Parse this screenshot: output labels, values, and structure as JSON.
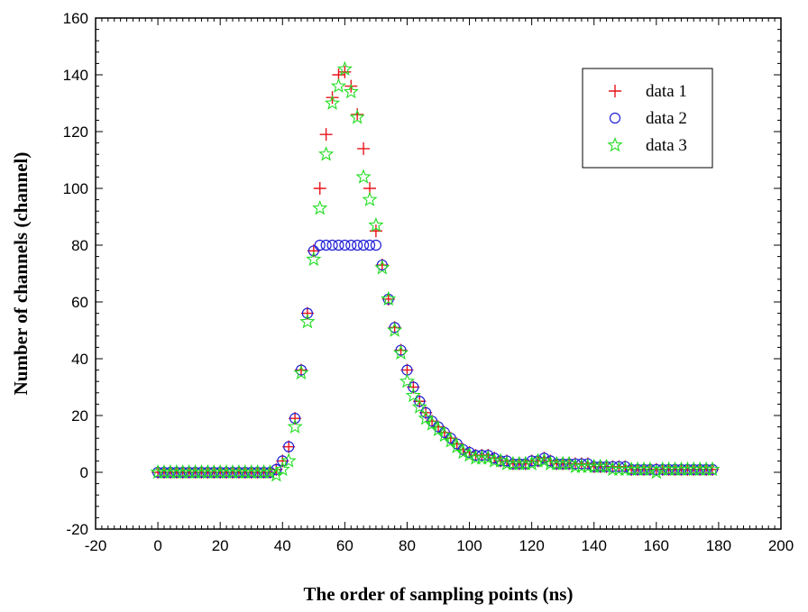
{
  "chart_data": {
    "type": "scatter",
    "title": "",
    "xlabel": "The order of sampling points (ns)",
    "ylabel": "Number of channels (channel)",
    "xlim": [
      -20,
      200
    ],
    "ylim": [
      -20,
      160
    ],
    "x_ticks": [
      -20,
      0,
      20,
      40,
      60,
      80,
      100,
      120,
      140,
      160,
      180,
      200
    ],
    "y_ticks": [
      -20,
      0,
      20,
      40,
      60,
      80,
      100,
      120,
      140,
      160
    ],
    "x_minor_step": 2,
    "y_minor_step": 4,
    "grid": false,
    "legend_position": "top-right",
    "x": [
      0,
      2,
      4,
      6,
      8,
      10,
      12,
      14,
      16,
      18,
      20,
      22,
      24,
      26,
      28,
      30,
      32,
      34,
      36,
      38,
      40,
      42,
      44,
      46,
      48,
      50,
      52,
      54,
      56,
      58,
      60,
      62,
      64,
      66,
      68,
      70,
      72,
      74,
      76,
      78,
      80,
      82,
      84,
      86,
      88,
      90,
      92,
      94,
      96,
      98,
      100,
      102,
      104,
      106,
      108,
      110,
      112,
      114,
      116,
      118,
      120,
      122,
      124,
      126,
      128,
      130,
      132,
      134,
      136,
      138,
      140,
      142,
      144,
      146,
      148,
      150,
      152,
      154,
      156,
      158,
      160,
      162,
      164,
      166,
      168,
      170,
      172,
      174,
      176,
      178
    ],
    "series": [
      {
        "name": "data 1",
        "marker": "plus",
        "color": "#e8131b",
        "values": [
          0,
          0,
          0,
          0,
          0,
          0,
          0,
          0,
          0,
          0,
          0,
          0,
          0,
          0,
          0,
          0,
          0,
          0,
          0,
          1,
          4,
          9,
          19,
          36,
          56,
          78,
          100,
          119,
          132,
          140,
          141,
          136,
          126,
          114,
          100,
          85,
          73,
          61,
          51,
          43,
          36,
          30,
          25,
          21,
          18,
          16,
          14,
          12,
          10,
          8,
          7,
          6,
          6,
          6,
          5,
          4,
          4,
          3,
          3,
          3,
          4,
          4,
          5,
          4,
          3,
          3,
          3,
          3,
          3,
          3,
          2,
          2,
          2,
          2,
          2,
          2,
          1,
          1,
          1,
          1,
          1,
          1,
          1,
          1,
          1,
          1,
          1,
          1,
          1,
          1
        ]
      },
      {
        "name": "data 2",
        "marker": "circle",
        "color": "#1f1fd6",
        "values": [
          0,
          0,
          0,
          0,
          0,
          0,
          0,
          0,
          0,
          0,
          0,
          0,
          0,
          0,
          0,
          0,
          0,
          0,
          0,
          1,
          4,
          9,
          19,
          36,
          56,
          78,
          80,
          80,
          80,
          80,
          80,
          80,
          80,
          80,
          80,
          80,
          73,
          61,
          51,
          43,
          36,
          30,
          25,
          21,
          18,
          16,
          14,
          12,
          10,
          8,
          7,
          6,
          6,
          6,
          5,
          4,
          4,
          3,
          3,
          3,
          4,
          4,
          5,
          4,
          3,
          3,
          3,
          3,
          3,
          3,
          2,
          2,
          2,
          2,
          2,
          2,
          1,
          1,
          1,
          1,
          1,
          1,
          1,
          1,
          1,
          1,
          1,
          1,
          1,
          1
        ]
      },
      {
        "name": "data 3",
        "marker": "star",
        "color": "#22dd22",
        "values": [
          0,
          0,
          0,
          0,
          0,
          0,
          0,
          0,
          0,
          0,
          0,
          0,
          0,
          0,
          0,
          0,
          0,
          0,
          0,
          -1,
          1,
          4,
          16,
          35,
          53,
          75,
          93,
          112,
          130,
          136,
          142,
          134,
          125,
          104,
          96,
          87,
          72,
          61,
          50,
          42,
          32,
          27,
          23,
          19,
          17,
          15,
          13,
          11,
          9,
          7,
          6,
          5,
          5,
          5,
          4,
          4,
          3,
          3,
          3,
          3,
          3,
          4,
          4,
          3,
          3,
          3,
          3,
          2,
          2,
          2,
          2,
          2,
          2,
          1,
          1,
          1,
          1,
          1,
          1,
          1,
          0,
          1,
          1,
          1,
          1,
          1,
          1,
          1,
          1,
          1
        ]
      }
    ]
  }
}
